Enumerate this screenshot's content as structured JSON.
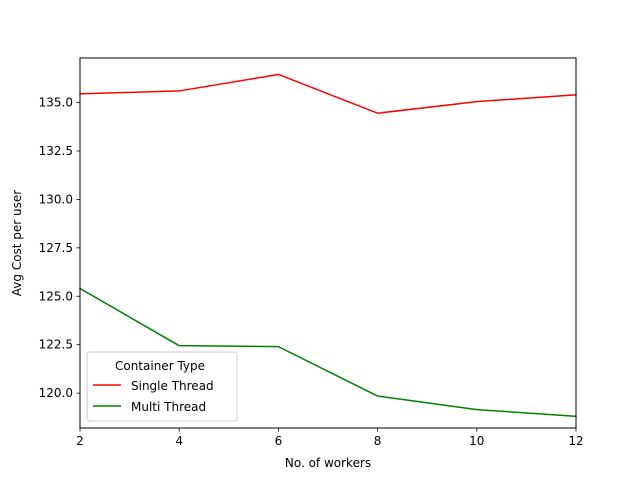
{
  "chart_data": {
    "type": "line",
    "title": "",
    "xlabel": "No. of workers",
    "ylabel": "Avg Cost per user",
    "x": [
      2,
      4,
      6,
      8,
      10,
      12
    ],
    "xlim": [
      2,
      12
    ],
    "ylim": [
      118.2,
      137.3
    ],
    "xticks": [
      "2",
      "4",
      "6",
      "8",
      "10",
      "12"
    ],
    "yticks": [
      "120.0",
      "122.5",
      "125.0",
      "127.5",
      "130.0",
      "132.5",
      "135.0"
    ],
    "grid": false,
    "legend": {
      "title": "Container Type",
      "placement": "lower-left"
    },
    "series": [
      {
        "name": "Single Thread",
        "color": "#ff0000",
        "values": [
          135.45,
          135.6,
          136.45,
          134.45,
          135.05,
          135.4
        ]
      },
      {
        "name": "Multi Thread",
        "color": "#008000",
        "values": [
          125.4,
          122.45,
          122.4,
          119.85,
          119.15,
          118.8
        ]
      }
    ]
  }
}
